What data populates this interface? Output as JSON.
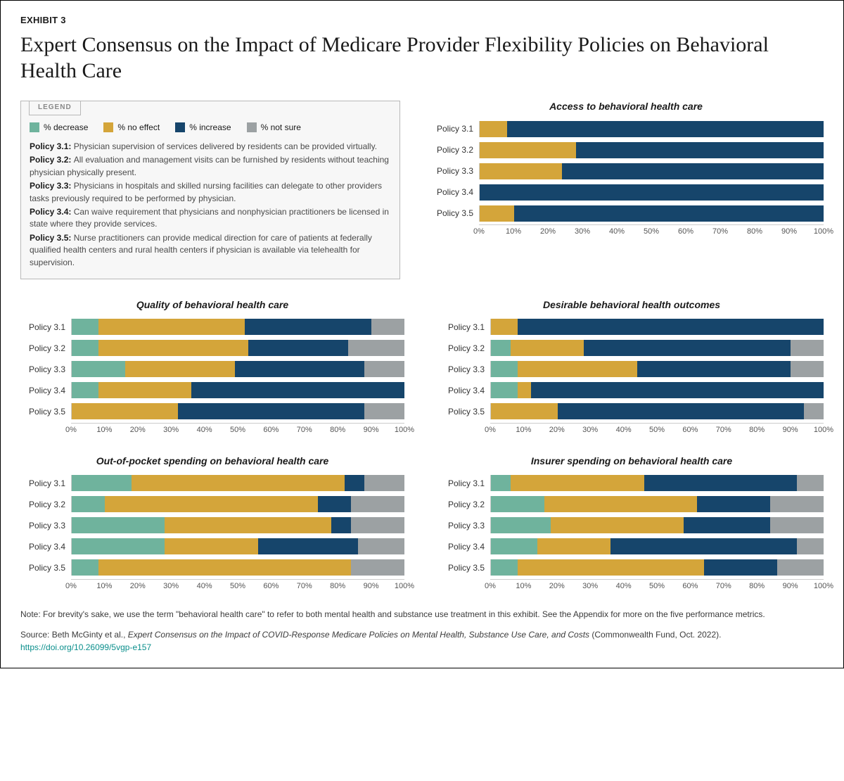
{
  "exhibit_label": "EXHIBIT 3",
  "title": "Expert Consensus on the Impact of Medicare Provider Flexibility Policies on Behavioral Health Care",
  "colors": {
    "decrease": "#6fb39d",
    "no_effect": "#d4a53a",
    "increase": "#16456b",
    "not_sure": "#9ca1a3",
    "grid": "#cccccc",
    "text": "#1a1a1a",
    "bg": "#ffffff"
  },
  "legend": {
    "tab": "LEGEND",
    "items": [
      {
        "key": "decrease",
        "label": "% decrease"
      },
      {
        "key": "no_effect",
        "label": "% no effect"
      },
      {
        "key": "increase",
        "label": "% increase"
      },
      {
        "key": "not_sure",
        "label": "% not sure"
      }
    ],
    "policies": [
      {
        "num": "Policy 3.1:",
        "text": "Physician supervision of services delivered by residents can be provided virtually."
      },
      {
        "num": "Policy 3.2:",
        "text": "All evaluation and management visits can be furnished by residents without teaching physician physically present."
      },
      {
        "num": "Policy 3.3:",
        "text": "Physicians in hospitals and skilled nursing facilities can delegate to other providers tasks previously required to be performed by physician."
      },
      {
        "num": "Policy 3.4:",
        "text": "Can waive requirement that physicians and nonphysician practitioners be licensed in state where they provide services."
      },
      {
        "num": "Policy 3.5:",
        "text": "Nurse practitioners can provide medical direction for care of patients at federally qualified health centers and rural health centers if physician is available via telehealth for supervision."
      }
    ]
  },
  "axis_ticks": [
    0,
    10,
    20,
    30,
    40,
    50,
    60,
    70,
    80,
    90,
    100
  ],
  "policies_short": [
    "Policy 3.1",
    "Policy 3.2",
    "Policy 3.3",
    "Policy 3.4",
    "Policy 3.5"
  ],
  "charts": [
    {
      "id": "access",
      "title": "Access to behavioral health care",
      "placement": "top",
      "data": [
        {
          "decrease": 0,
          "no_effect": 8,
          "increase": 92,
          "not_sure": 0
        },
        {
          "decrease": 0,
          "no_effect": 28,
          "increase": 72,
          "not_sure": 0
        },
        {
          "decrease": 0,
          "no_effect": 24,
          "increase": 76,
          "not_sure": 0
        },
        {
          "decrease": 0,
          "no_effect": 0,
          "increase": 100,
          "not_sure": 0
        },
        {
          "decrease": 0,
          "no_effect": 10,
          "increase": 90,
          "not_sure": 0
        }
      ]
    },
    {
      "id": "quality",
      "title": "Quality of behavioral health care",
      "placement": "grid",
      "data": [
        {
          "decrease": 8,
          "no_effect": 44,
          "increase": 38,
          "not_sure": 10
        },
        {
          "decrease": 8,
          "no_effect": 45,
          "increase": 30,
          "not_sure": 17
        },
        {
          "decrease": 16,
          "no_effect": 33,
          "increase": 39,
          "not_sure": 12
        },
        {
          "decrease": 8,
          "no_effect": 28,
          "increase": 64,
          "not_sure": 0
        },
        {
          "decrease": 0,
          "no_effect": 32,
          "increase": 56,
          "not_sure": 12
        }
      ]
    },
    {
      "id": "outcomes",
      "title": "Desirable behavioral health outcomes",
      "placement": "grid",
      "data": [
        {
          "decrease": 0,
          "no_effect": 8,
          "increase": 92,
          "not_sure": 0
        },
        {
          "decrease": 6,
          "no_effect": 22,
          "increase": 62,
          "not_sure": 10
        },
        {
          "decrease": 8,
          "no_effect": 36,
          "increase": 46,
          "not_sure": 10
        },
        {
          "decrease": 8,
          "no_effect": 4,
          "increase": 88,
          "not_sure": 0
        },
        {
          "decrease": 0,
          "no_effect": 20,
          "increase": 74,
          "not_sure": 6
        }
      ]
    },
    {
      "id": "oop",
      "title": "Out-of-pocket spending on behavioral health care",
      "placement": "grid",
      "data": [
        {
          "decrease": 18,
          "no_effect": 64,
          "increase": 6,
          "not_sure": 12
        },
        {
          "decrease": 10,
          "no_effect": 64,
          "increase": 10,
          "not_sure": 16
        },
        {
          "decrease": 28,
          "no_effect": 50,
          "increase": 6,
          "not_sure": 16
        },
        {
          "decrease": 28,
          "no_effect": 28,
          "increase": 30,
          "not_sure": 14
        },
        {
          "decrease": 8,
          "no_effect": 76,
          "increase": 0,
          "not_sure": 16
        }
      ]
    },
    {
      "id": "insurer",
      "title": "Insurer spending on behavioral health care",
      "placement": "grid",
      "data": [
        {
          "decrease": 6,
          "no_effect": 40,
          "increase": 46,
          "not_sure": 8
        },
        {
          "decrease": 16,
          "no_effect": 46,
          "increase": 22,
          "not_sure": 16
        },
        {
          "decrease": 18,
          "no_effect": 40,
          "increase": 26,
          "not_sure": 16
        },
        {
          "decrease": 14,
          "no_effect": 22,
          "increase": 56,
          "not_sure": 8
        },
        {
          "decrease": 8,
          "no_effect": 56,
          "increase": 22,
          "not_sure": 14
        }
      ]
    }
  ],
  "footnote": "Note: For brevity's sake, we use the term \"behavioral health care\" to refer to both mental health and substance use treatment in this exhibit. See the Appendix for more on the five performance metrics.",
  "source_prefix": "Source: Beth McGinty et al., ",
  "source_title": "Expert Consensus on the Impact of COVID-Response Medicare Policies on Mental Health, Substance Use Care, and Costs",
  "source_suffix": " (Commonwealth Fund, Oct. 2022). ",
  "source_link": "https://doi.org/10.26099/5vgp-e157"
}
